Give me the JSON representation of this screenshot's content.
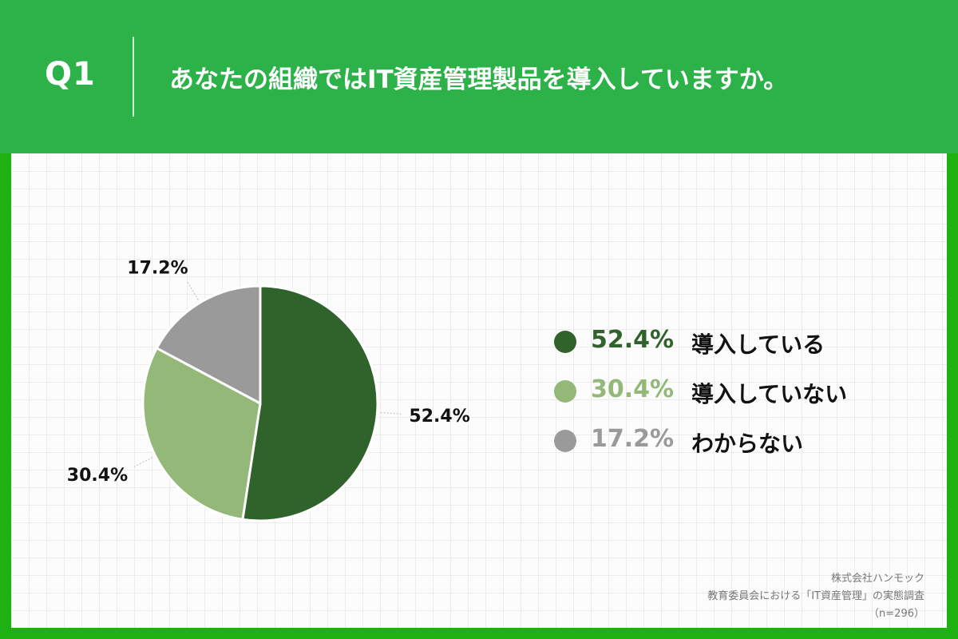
{
  "header": {
    "question_label": "Q1",
    "title": "あなたの組織ではIT資産管理製品を導入していますか。"
  },
  "chart_data": {
    "type": "pie",
    "categories": [
      "導入している",
      "導入していない",
      "わからない"
    ],
    "values": [
      52.4,
      30.4,
      17.2
    ],
    "unit": "%",
    "data_labels": [
      "52.4%",
      "30.4%",
      "17.2%"
    ],
    "colors": [
      "#30632c",
      "#93b877",
      "#9a9a9a"
    ],
    "legend_position": "right",
    "start": "12 o'clock, clockwise"
  },
  "legend": {
    "items": [
      {
        "value": "52.4%",
        "label": "導入している",
        "color": "#30632c"
      },
      {
        "value": "30.4%",
        "label": "導入していない",
        "color": "#93b877"
      },
      {
        "value": "17.2%",
        "label": "わからない",
        "color": "#9a9a9a"
      }
    ]
  },
  "source": {
    "company": "株式会社ハンモック",
    "survey": "教育委員会における「IT資産管理」の実態調査",
    "sample": "（n=296）"
  }
}
